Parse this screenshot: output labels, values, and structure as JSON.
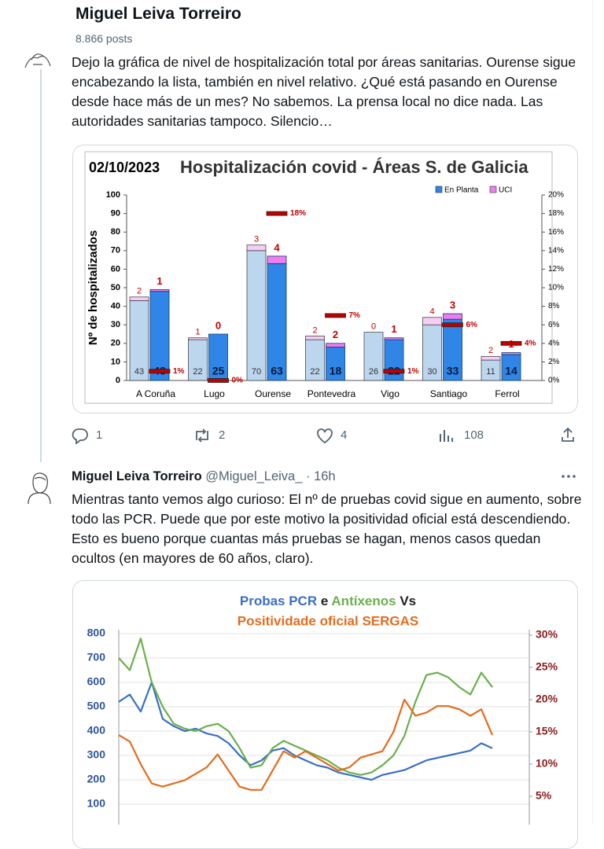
{
  "header": {
    "name": "Miguel Leiva Torreiro",
    "posts": "8.866 posts"
  },
  "posts": [
    {
      "text": "Dejo la gráfica de nivel de hospitalización total por áreas sanitarias. Ourense sigue encabezando la lista, también en nivel relativo. ¿Qué está pasando en Ourense desde hace más de un mes? No sabemos. La prensa local no dice nada. Las autoridades sanitarias tampoco. Silencio…",
      "chart": {
        "type": "bar",
        "date": "02/10/2023",
        "title": "Hospitalización covid - Áreas S. de Galicia",
        "ylabel": "Nº de hospitalizados",
        "categories": [
          "A Coruña",
          "Lugo",
          "Ourense",
          "Pontevedra",
          "Vigo",
          "Santiago",
          "Ferrol"
        ],
        "series": [
          {
            "name": "En Planta",
            "color": "#2f86e6",
            "values": [
              48,
              25,
              63,
              18,
              22,
              33,
              14
            ]
          },
          {
            "name": "UCI",
            "color": "#ee7ef0",
            "values": [
              1,
              0,
              4,
              2,
              1,
              3,
              1
            ]
          }
        ],
        "previous": {
          "color": "#bcd6ee",
          "uci_color": "#f6cdf4",
          "values": [
            43,
            22,
            70,
            22,
            26,
            30,
            11
          ],
          "uci": [
            2,
            1,
            3,
            2,
            0,
            4,
            2
          ]
        },
        "relative": {
          "axis": "y2",
          "color": "#c00000",
          "values": [
            1,
            0,
            18,
            7,
            1,
            6,
            4
          ],
          "value_labels": [
            "1%",
            "0%",
            "18%",
            "7%",
            "1%",
            "6%",
            "4%"
          ]
        },
        "ylim": [
          0,
          100
        ],
        "yticks": [
          0,
          10,
          20,
          30,
          40,
          50,
          60,
          70,
          80,
          90,
          100
        ],
        "y2lim": [
          0,
          20
        ],
        "y2ticks": [
          {
            "value": 0,
            "label": "0%"
          },
          {
            "value": 2,
            "label": "2%"
          },
          {
            "value": 4,
            "label": "4%"
          },
          {
            "value": 6,
            "label": "6%"
          },
          {
            "value": 8,
            "label": "8%"
          },
          {
            "value": 10,
            "label": "10%"
          },
          {
            "value": 12,
            "label": "12%"
          },
          {
            "value": 14,
            "label": "14%"
          },
          {
            "value": 16,
            "label": "16%"
          },
          {
            "value": 18,
            "label": "18%"
          },
          {
            "value": 20,
            "label": "20%"
          }
        ]
      },
      "actions": {
        "replies": "1",
        "reposts": "2",
        "likes": "4",
        "views": "108"
      }
    },
    {
      "author": "Miguel Leiva Torreiro",
      "handle": "@Miguel_Leiva_",
      "time": "· 16h",
      "text": "Mientras tanto vemos algo curioso: El nº de pruebas covid sigue en aumento, sobre todo las PCR. Puede que por este motivo la positividad oficial está descendiendo. Esto es bueno porque cuantas más pruebas se hagan, menos casos quedan ocultos (en mayores de 60 años, claro).",
      "chart": {
        "type": "line",
        "title": [
          "Probas PCR",
          "e",
          "Antíxenos",
          "Vs"
        ],
        "subtitle": "Positividade oficial SERGAS",
        "series": [
          {
            "color": "#3a6fc4",
            "values": [
              520,
              550,
              480,
              600,
              450,
              420,
              400,
              410,
              390,
              380,
              350,
              300,
              260,
              280,
              320,
              330,
              300,
              280,
              260,
              250,
              230,
              220,
              210,
              200,
              220,
              230,
              240,
              260,
              280,
              290,
              300,
              310,
              320,
              350,
              330
            ]
          },
          {
            "color": "#6ab04c",
            "values": [
              700,
              650,
              780,
              600,
              500,
              430,
              410,
              400,
              420,
              430,
              400,
              330,
              250,
              260,
              330,
              360,
              340,
              320,
              300,
              280,
              250,
              230,
              220,
              230,
              260,
              300,
              380,
              520,
              630,
              640,
              620,
              580,
              550,
              640,
              580
            ]
          },
          {
            "color": "#e36c1e",
            "axis": "y2",
            "values": [
              14.5,
              13.5,
              10,
              7,
              6.5,
              7,
              7.5,
              8.5,
              9.5,
              11.5,
              9,
              6.5,
              6,
              6,
              9,
              12,
              11,
              12,
              11,
              10,
              9,
              9.5,
              11,
              11.5,
              12,
              15,
              20,
              17.5,
              18,
              19,
              19,
              18.5,
              17.5,
              18.5,
              14.5
            ]
          }
        ],
        "ylim": [
          0,
          800
        ],
        "yticks": [
          100,
          200,
          300,
          400,
          500,
          600,
          700,
          800
        ],
        "y2lim": [
          0,
          30
        ],
        "y2ticks": [
          {
            "value": 5,
            "label": "5%"
          },
          {
            "value": 10,
            "label": "10%"
          },
          {
            "value": 15,
            "label": "15%"
          },
          {
            "value": 20,
            "label": "20%"
          },
          {
            "value": 25,
            "label": "25%"
          },
          {
            "value": 30,
            "label": "30%"
          }
        ],
        "grid": true
      }
    }
  ]
}
